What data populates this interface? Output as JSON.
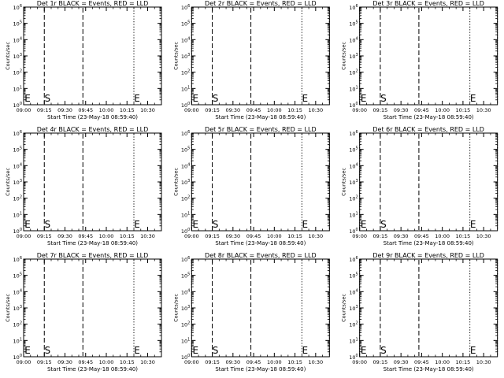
{
  "figure": {
    "charts": [
      {
        "title": "Det 1r BLACK = Events, RED = LLD"
      },
      {
        "title": "Det 2r BLACK = Events, RED = LLD"
      },
      {
        "title": "Det 3r BLACK = Events, RED = LLD"
      },
      {
        "title": "Det 4r BLACK = Events, RED = LLD"
      },
      {
        "title": "Det 5r BLACK = Events, RED = LLD"
      },
      {
        "title": "Det 6r BLACK = Events, RED = LLD"
      },
      {
        "title": "Det 7r BLACK = Events, RED = LLD"
      },
      {
        "title": "Det 8r BLACK = Events, RED = LLD"
      },
      {
        "title": "Det 9r BLACK = Events, RED = LLD"
      }
    ]
  },
  "chart_data": {
    "type": "line",
    "layout": "3x3 small multiples",
    "title_template": "Det {n}r BLACK = Events, RED = LLD",
    "detectors": [
      "1r",
      "2r",
      "3r",
      "4r",
      "5r",
      "6r",
      "7r",
      "8r",
      "9r"
    ],
    "xlabel": "Start Time (23-May-18 08:59:40)",
    "ylabel": "Counts/sec",
    "x_tick_labels": [
      "09:00",
      "09:15",
      "09:30",
      "09:45",
      "10:00",
      "10:15",
      "10:30"
    ],
    "y_tick_labels": [
      "10^0",
      "10^1",
      "10^2",
      "10^3",
      "10^4",
      "10^5",
      "10^6"
    ],
    "y_scale": "log",
    "ylim": [
      1,
      1000000
    ],
    "xlim_minutes_after_09_00": [
      0,
      100
    ],
    "series": [
      {
        "name": "Events",
        "color": "#000000",
        "values": []
      },
      {
        "name": "LLD",
        "color": "#ff0000",
        "values": []
      }
    ],
    "markers": [
      {
        "label": "E",
        "time": "09:00",
        "style": "dotted"
      },
      {
        "label": "S",
        "time": "09:15",
        "style": "dashed"
      },
      {
        "label": "",
        "time": "09:43",
        "style": "dashed"
      },
      {
        "label": "E",
        "time": "10:20",
        "style": "dotted"
      },
      {
        "label": "",
        "time": "10:40",
        "style": "dotted"
      }
    ]
  }
}
